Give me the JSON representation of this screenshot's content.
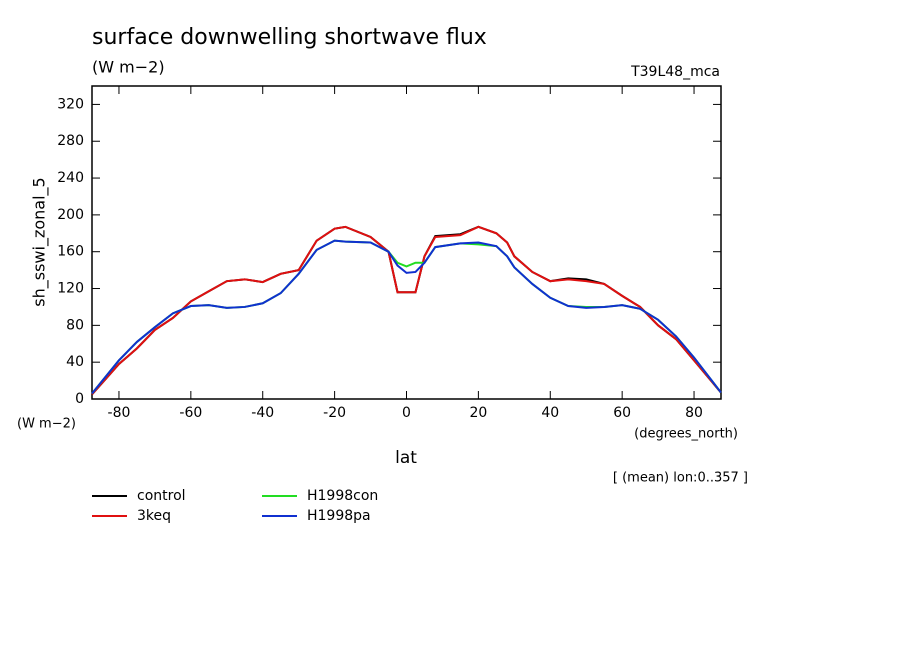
{
  "chart_data": {
    "type": "line",
    "title": "surface downwelling shortwave flux",
    "subtitle": "(W m−2)",
    "run_label": "T39L48_mca",
    "y_label": "sh_sswi_zonal_5",
    "y_units": "(W m−2)",
    "x_units": "(degrees_north)",
    "x_label": "lat",
    "annotation": "[ (mean) lon:0..357 ]",
    "xlim": [
      -87.5,
      87.5
    ],
    "ylim": [
      0,
      340
    ],
    "xticks": [
      -80,
      -60,
      -40,
      -20,
      0,
      20,
      40,
      60,
      80
    ],
    "yticks": [
      0,
      40,
      80,
      120,
      160,
      200,
      240,
      280,
      320
    ],
    "x": [
      -87.5,
      -80,
      -75,
      -70,
      -65,
      -60,
      -55,
      -50,
      -45,
      -40,
      -35,
      -30,
      -25,
      -20,
      -17,
      -10,
      -5,
      -2.5,
      0,
      2.5,
      5,
      8,
      15,
      20,
      25,
      28,
      30,
      35,
      40,
      45,
      50,
      55,
      60,
      65,
      70,
      75,
      80,
      87.5
    ],
    "series": [
      {
        "name": "control",
        "color": "#000000",
        "values": [
          5,
          38,
          55,
          75,
          88,
          106,
          117,
          128,
          130,
          127,
          136,
          140,
          172,
          185,
          187,
          176,
          160,
          116,
          116,
          116,
          155,
          177,
          179,
          187,
          180,
          170,
          155,
          138,
          128,
          131,
          130,
          125,
          112,
          100,
          80,
          65,
          42,
          7
        ]
      },
      {
        "name": "3keq",
        "color": "#e01010",
        "values": [
          5,
          38,
          55,
          75,
          88,
          106,
          117,
          128,
          130,
          127,
          136,
          140,
          172,
          185,
          187,
          176,
          160,
          116,
          116,
          116,
          155,
          176,
          178,
          187,
          180,
          170,
          155,
          138,
          128,
          130,
          128,
          125,
          112,
          100,
          80,
          65,
          42,
          7
        ]
      },
      {
        "name": "H1998con",
        "color": "#22dd22",
        "values": [
          6,
          42,
          62,
          78,
          93,
          101,
          102,
          99,
          100,
          104,
          115,
          136,
          162,
          172,
          171,
          170,
          160,
          148,
          144,
          148,
          148,
          165,
          169,
          168,
          166,
          155,
          143,
          125,
          110,
          101,
          100,
          100,
          102,
          98,
          86,
          68,
          45,
          7
        ]
      },
      {
        "name": "H1998pa",
        "color": "#1030d0",
        "values": [
          6,
          42,
          62,
          78,
          93,
          101,
          102,
          99,
          100,
          104,
          115,
          136,
          162,
          172,
          171,
          170,
          160,
          145,
          137,
          138,
          148,
          165,
          169,
          170,
          166,
          155,
          143,
          125,
          110,
          101,
          99,
          100,
          102,
          98,
          86,
          68,
          45,
          7
        ]
      }
    ]
  }
}
